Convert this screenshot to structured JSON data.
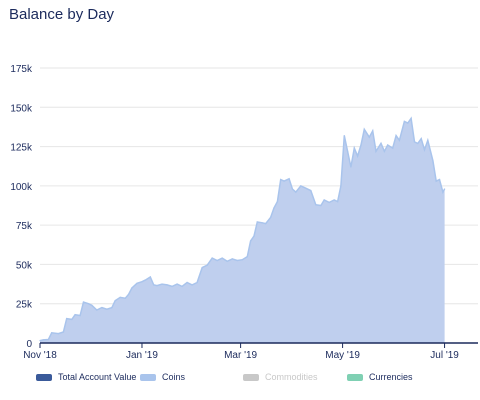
{
  "chart_data": {
    "type": "area",
    "title": "Balance by Day",
    "xlabel": "",
    "ylabel": "",
    "x_start": "2018-11-01",
    "x_end": "2019-07-21",
    "x_ticks": [
      {
        "date": "2018-11-01",
        "label": "Nov '18"
      },
      {
        "date": "2019-01-01",
        "label": "Jan '19"
      },
      {
        "date": "2019-03-01",
        "label": "Mar '19"
      },
      {
        "date": "2019-05-01",
        "label": "May '19"
      },
      {
        "date": "2019-07-01",
        "label": "Jul '19"
      }
    ],
    "ylim": [
      0,
      175000
    ],
    "y_ticks": [
      {
        "value": 0,
        "label": "0"
      },
      {
        "value": 25000,
        "label": "25k"
      },
      {
        "value": 50000,
        "label": "50k"
      },
      {
        "value": 75000,
        "label": "75k"
      },
      {
        "value": 100000,
        "label": "100k"
      },
      {
        "value": 125000,
        "label": "125k"
      },
      {
        "value": 150000,
        "label": "150k"
      },
      {
        "value": 175000,
        "label": "175k"
      }
    ],
    "grid": true,
    "legend_position": "bottom",
    "series": [
      {
        "name": "Coins",
        "color": "#a9c4ec",
        "fill_color": "#bfcfee",
        "points": [
          [
            "2018-11-01",
            1500
          ],
          [
            "2018-11-03",
            2000
          ],
          [
            "2018-11-06",
            2200
          ],
          [
            "2018-11-08",
            6500
          ],
          [
            "2018-11-12",
            6000
          ],
          [
            "2018-11-15",
            7000
          ],
          [
            "2018-11-17",
            15500
          ],
          [
            "2018-11-20",
            15000
          ],
          [
            "2018-11-22",
            18000
          ],
          [
            "2018-11-25",
            17500
          ],
          [
            "2018-11-27",
            26000
          ],
          [
            "2018-11-30",
            25000
          ],
          [
            "2018-12-02",
            24000
          ],
          [
            "2018-12-05",
            21000
          ],
          [
            "2018-12-08",
            22500
          ],
          [
            "2018-12-11",
            21500
          ],
          [
            "2018-12-14",
            22500
          ],
          [
            "2018-12-16",
            27000
          ],
          [
            "2018-12-19",
            29000
          ],
          [
            "2018-12-22",
            28500
          ],
          [
            "2018-12-24",
            31000
          ],
          [
            "2018-12-26",
            35000
          ],
          [
            "2018-12-29",
            38000
          ],
          [
            "2019-01-01",
            39000
          ],
          [
            "2019-01-03",
            40000
          ],
          [
            "2019-01-06",
            42000
          ],
          [
            "2019-01-08",
            37000
          ],
          [
            "2019-01-10",
            36500
          ],
          [
            "2019-01-13",
            37500
          ],
          [
            "2019-01-16",
            37000
          ],
          [
            "2019-01-19",
            36000
          ],
          [
            "2019-01-22",
            37500
          ],
          [
            "2019-01-25",
            36000
          ],
          [
            "2019-01-28",
            38500
          ],
          [
            "2019-01-31",
            37000
          ],
          [
            "2019-02-03",
            38500
          ],
          [
            "2019-02-06",
            48000
          ],
          [
            "2019-02-09",
            49500
          ],
          [
            "2019-02-12",
            54000
          ],
          [
            "2019-02-15",
            52500
          ],
          [
            "2019-02-18",
            54000
          ],
          [
            "2019-02-21",
            52000
          ],
          [
            "2019-02-24",
            53500
          ],
          [
            "2019-02-27",
            52500
          ],
          [
            "2019-03-02",
            53000
          ],
          [
            "2019-03-05",
            55000
          ],
          [
            "2019-03-07",
            65000
          ],
          [
            "2019-03-09",
            68000
          ],
          [
            "2019-03-11",
            77000
          ],
          [
            "2019-03-14",
            76500
          ],
          [
            "2019-03-16",
            76000
          ],
          [
            "2019-03-19",
            80000
          ],
          [
            "2019-03-21",
            86000
          ],
          [
            "2019-03-23",
            90000
          ],
          [
            "2019-03-25",
            104000
          ],
          [
            "2019-03-27",
            103000
          ],
          [
            "2019-03-30",
            104500
          ],
          [
            "2019-04-01",
            98000
          ],
          [
            "2019-04-03",
            96000
          ],
          [
            "2019-04-06",
            100000
          ],
          [
            "2019-04-09",
            98500
          ],
          [
            "2019-04-12",
            97000
          ],
          [
            "2019-04-15",
            88000
          ],
          [
            "2019-04-18",
            87500
          ],
          [
            "2019-04-20",
            91000
          ],
          [
            "2019-04-23",
            89500
          ],
          [
            "2019-04-26",
            91000
          ],
          [
            "2019-04-28",
            90000
          ],
          [
            "2019-04-30",
            100000
          ],
          [
            "2019-05-02",
            132000
          ],
          [
            "2019-05-04",
            122000
          ],
          [
            "2019-05-06",
            112000
          ],
          [
            "2019-05-08",
            124000
          ],
          [
            "2019-05-10",
            119000
          ],
          [
            "2019-05-12",
            126000
          ],
          [
            "2019-05-14",
            136000
          ],
          [
            "2019-05-17",
            131000
          ],
          [
            "2019-05-19",
            135000
          ],
          [
            "2019-05-21",
            122000
          ],
          [
            "2019-05-24",
            127000
          ],
          [
            "2019-05-26",
            122000
          ],
          [
            "2019-05-28",
            126000
          ],
          [
            "2019-05-31",
            124000
          ],
          [
            "2019-06-02",
            132000
          ],
          [
            "2019-06-04",
            129000
          ],
          [
            "2019-06-07",
            141000
          ],
          [
            "2019-06-09",
            140000
          ],
          [
            "2019-06-11",
            143000
          ],
          [
            "2019-06-13",
            128000
          ],
          [
            "2019-06-15",
            127000
          ],
          [
            "2019-06-17",
            130000
          ],
          [
            "2019-06-19",
            123000
          ],
          [
            "2019-06-21",
            129000
          ],
          [
            "2019-06-24",
            116000
          ],
          [
            "2019-06-26",
            103000
          ],
          [
            "2019-06-28",
            104000
          ],
          [
            "2019-06-30",
            96000
          ],
          [
            "2019-07-01",
            98000
          ]
        ]
      }
    ]
  },
  "legend": {
    "items": [
      {
        "label": "Total Account Value",
        "color": "#3a5a9a",
        "enabled": true
      },
      {
        "label": "Coins",
        "color": "#a9c4ec",
        "enabled": true
      },
      {
        "label": "Commodities",
        "color": "#c8c8c8",
        "enabled": false
      },
      {
        "label": "Currencies",
        "color": "#7fd0b3",
        "enabled": true
      }
    ]
  }
}
